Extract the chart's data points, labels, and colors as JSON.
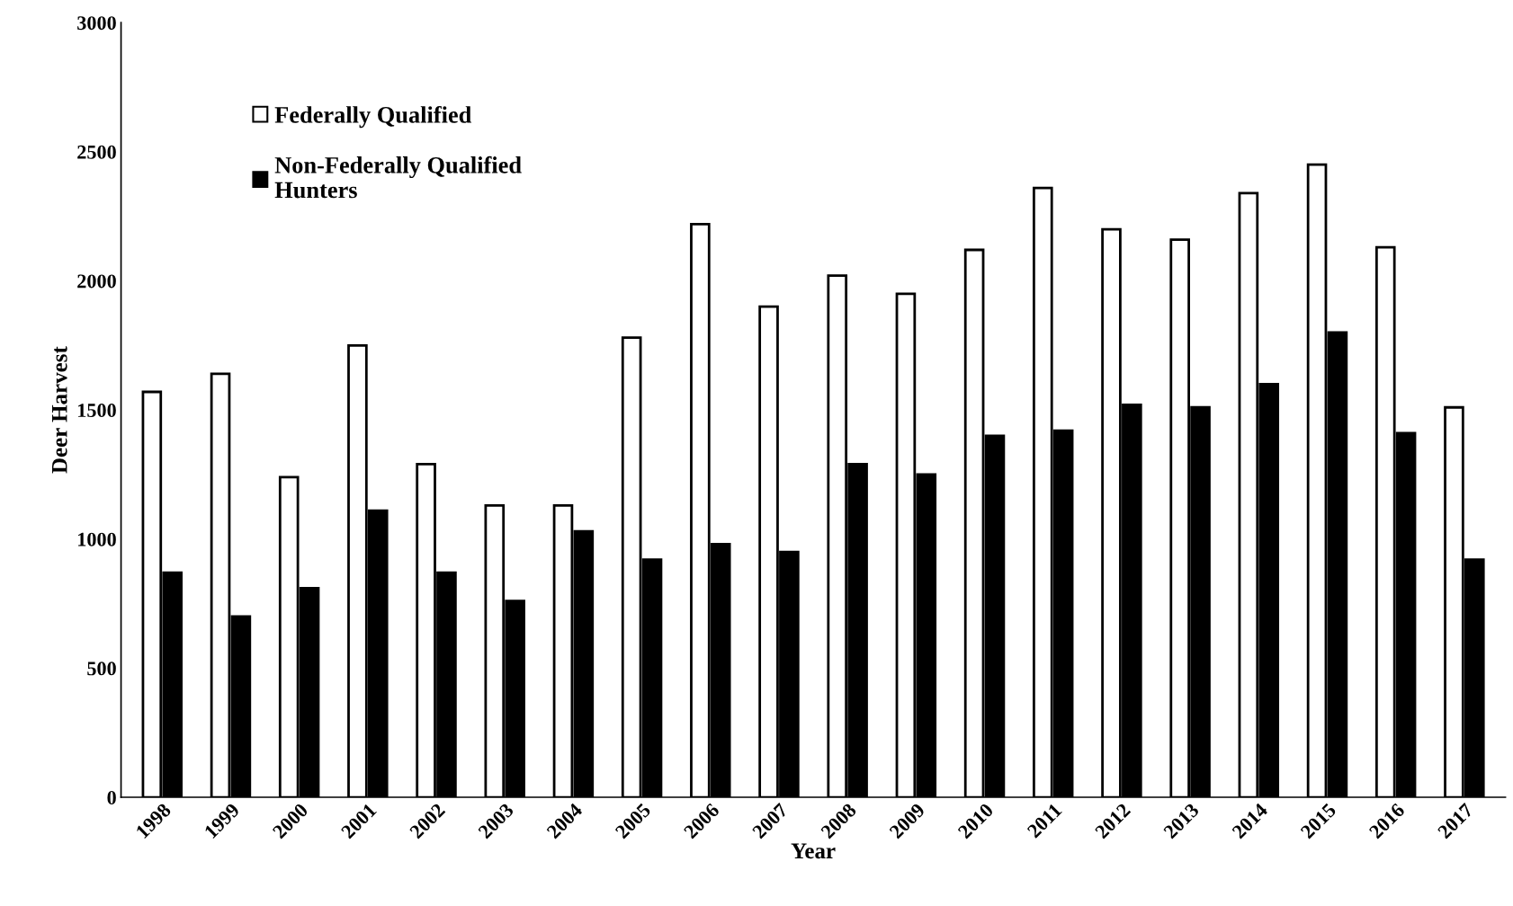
{
  "chart_data": {
    "type": "bar",
    "xlabel": "Year",
    "ylabel": "Deer Harvest",
    "categories": [
      "1998",
      "1999",
      "2000",
      "2001",
      "2002",
      "2003",
      "2004",
      "2005",
      "2006",
      "2007",
      "2008",
      "2009",
      "2010",
      "2011",
      "2012",
      "2013",
      "2014",
      "2015",
      "2016",
      "2017"
    ],
    "series": [
      {
        "name": "Federally Qualified",
        "color": "#ffffff",
        "values": [
          1570,
          1640,
          1240,
          1750,
          1290,
          1130,
          1130,
          1780,
          2220,
          1900,
          2020,
          1950,
          2120,
          2360,
          2200,
          2160,
          2340,
          2450,
          2130,
          1510
        ]
      },
      {
        "name": "Non-Federally Qualified\nHunters",
        "color": "#000000",
        "values": [
          870,
          700,
          810,
          1110,
          870,
          760,
          1030,
          920,
          980,
          950,
          1290,
          1250,
          1400,
          1420,
          1520,
          1510,
          1600,
          1800,
          1410,
          920
        ]
      }
    ],
    "ylim": [
      0,
      3000
    ],
    "yticks": [
      0,
      500,
      1000,
      1500,
      2000,
      2500,
      3000
    ],
    "grid": false,
    "legend": "top left"
  }
}
